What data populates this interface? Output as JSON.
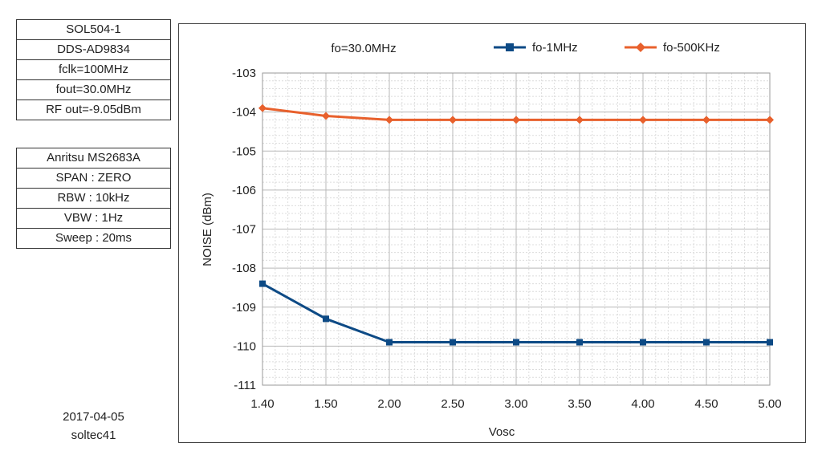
{
  "settings_box": {
    "lines": [
      "SOL504-1",
      "DDS-AD9834",
      "fclk=100MHz",
      "fout=30.0MHz",
      "RF out=-9.05dBm"
    ]
  },
  "instrument_box": {
    "lines": [
      "Anritsu  MS2683A",
      "SPAN : ZERO",
      "RBW  : 10kHz",
      "VBW : 1Hz",
      "Sweep : 20ms"
    ]
  },
  "footer": {
    "date": "2017-04-05",
    "author": "soltec41"
  },
  "chart_data": {
    "type": "line",
    "title": "fo=30.0MHz",
    "xlabel": "Vosc",
    "ylabel": "NOISE (dBm)",
    "categories": [
      "1.40",
      "1.50",
      "2.00",
      "2.50",
      "3.00",
      "3.50",
      "4.00",
      "4.50",
      "5.00"
    ],
    "yticks": [
      "-103",
      "-104",
      "-105",
      "-106",
      "-107",
      "-108",
      "-109",
      "-110",
      "-111"
    ],
    "ylim": [
      -111,
      -103
    ],
    "grid": true,
    "legend_position": "top",
    "series": [
      {
        "name": "fo-1MHz",
        "color": "#0d4a85",
        "marker": "square",
        "values": [
          -108.4,
          -109.3,
          -109.9,
          -109.9,
          -109.9,
          -109.9,
          -109.9,
          -109.9,
          -109.9
        ]
      },
      {
        "name": "fo-500KHz",
        "color": "#e8602c",
        "marker": "diamond",
        "values": [
          -103.9,
          -104.1,
          -104.2,
          -104.2,
          -104.2,
          -104.2,
          -104.2,
          -104.2,
          -104.2
        ]
      }
    ]
  }
}
